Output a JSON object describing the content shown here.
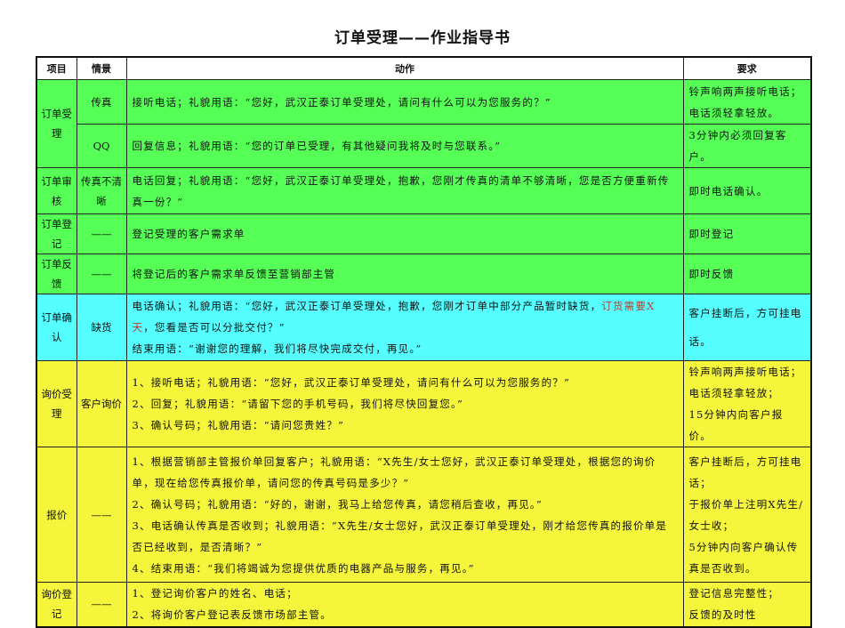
{
  "title": "订单受理——作业指导书",
  "headers": {
    "item": "项目",
    "scene": "情景",
    "action": "动作",
    "requirement": "要求"
  },
  "colors": {
    "green": "#55ff55",
    "cyan": "#55ffff",
    "yellow": "#f5f53c",
    "highlight_text": "#c0392b"
  },
  "rows": {
    "r1": {
      "item": "订单受理",
      "scene": "传真",
      "action": [
        "接听电话；礼貌用语：“您好，武汉正泰订单受理处，请问有什么可以为您服务的？”"
      ],
      "requirement": [
        "铃声响两声接听电话；",
        "电话须轻拿轻放。"
      ]
    },
    "r2": {
      "scene": "QQ",
      "action": [
        "回复信息；礼貌用语：“您的订单已受理，有其他疑问我将及时与您联系。”"
      ],
      "requirement": [
        "3分钟内必须回复客户。"
      ]
    },
    "r3": {
      "item": "订单审核",
      "scene": "传真不清晰",
      "action": [
        "电话回复；礼貌用语：“您好，武汉正泰订单受理处，抱歉，您刚才传真的清单不够清晰，您是否方便重新传真一份？”"
      ],
      "requirement": [
        "即时电话确认。"
      ]
    },
    "r4": {
      "item": "订单登记",
      "scene": "——",
      "action": [
        "登记受理的客户需求单"
      ],
      "requirement": [
        "即时登记"
      ]
    },
    "r5": {
      "item": "订单反馈",
      "scene": "——",
      "action": [
        "将登记后的客户需求单反馈至营销部主管"
      ],
      "requirement": [
        "即时反馈"
      ]
    },
    "r6": {
      "item": "订单确认",
      "scene": "缺货",
      "action_a": "电话确认；礼貌用语：“您好，武汉正泰订单受理处，抱歉，您刚才订单中部分产品暂时缺货，",
      "action_red": "订货需要X天",
      "action_b": "，您看是否可以分批交付？”",
      "action_2": "结束用语：“谢谢您的理解，我们将尽快完成交付，再见。”",
      "requirement": [
        "客户挂断后，方可挂电话。"
      ]
    },
    "r7": {
      "item": "询价受理",
      "scene": "客户询价",
      "action": [
        "1、接听电话；礼貌用语：“您好，武汉正泰订单受理处，请问有什么可以为您服务的？”",
        "2、回复；礼貌用语：“请留下您的手机号码，我们将尽快回复您。”",
        "3、确认号码；礼貌用语：“请问您贵姓？”"
      ],
      "requirement": [
        "铃声响两声接听电话；",
        "电话须轻拿轻放；",
        "15分钟内向客户报价。"
      ]
    },
    "r8": {
      "item": "报价",
      "scene": "——",
      "action": [
        "1、根据营销部主管报价单回复客户；礼貌用语：“X先生/女士您好，武汉正泰订单受理处，根据您的询价单，现在给您传真报价单，请问您的传真号码是多少？”",
        "2、确认号码；礼貌用语：“好的，谢谢，我马上给您传真，请您稍后查收，再见。”",
        "3、电话确认传真是否收到；礼貌用语：“X先生/女士您好，武汉正泰订单受理处，刚才给您传真的报价单是否已经收到，是否清晰？”",
        "4、结束用语：“我们将竭诚为您提供优质的电器产品与服务，再见。”"
      ],
      "requirement": [
        "客户挂断后，方可挂电话；",
        "于报价单上注明X先生/女士收；",
        "5分钟内向客户确认传真是否收到。"
      ]
    },
    "r9": {
      "item": "询价登记",
      "scene": "——",
      "action": [
        "1、登记询价客户的姓名、电话；",
        "2、将询价客户登记表反馈市场部主管。"
      ],
      "requirement": [
        "登记信息完整性；",
        "反馈的及时性"
      ]
    }
  }
}
